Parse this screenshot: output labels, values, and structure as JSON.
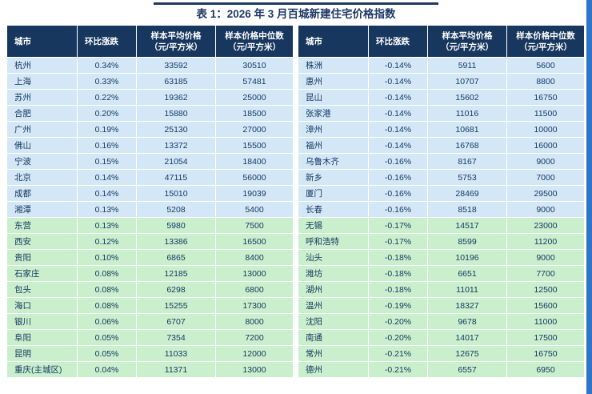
{
  "page": {
    "title": "表 1：2026 年 3 月百城新建住宅价格指数"
  },
  "colors": {
    "header_bg": "#17375e",
    "title_color": "#1f3864",
    "row_blue": "#d3e7f7",
    "row_green": "#c9efcd",
    "accent_strip": "#2e74c9",
    "cell_text": "#173a63"
  },
  "columns": [
    {
      "key": "city",
      "label": "城市",
      "sub": ""
    },
    {
      "key": "change",
      "label": "环比涨跌",
      "sub": ""
    },
    {
      "key": "avg",
      "label": "样本平均价格",
      "sub": "（元/平方米）"
    },
    {
      "key": "median",
      "label": "样本价格中位数",
      "sub": "（元/平方米）"
    }
  ],
  "left_table": {
    "rows": [
      {
        "city": "杭州",
        "change": "0.34%",
        "avg": "33592",
        "median": "30510"
      },
      {
        "city": "上海",
        "change": "0.33%",
        "avg": "63185",
        "median": "57481"
      },
      {
        "city": "苏州",
        "change": "0.22%",
        "avg": "19362",
        "median": "25000"
      },
      {
        "city": "合肥",
        "change": "0.20%",
        "avg": "15880",
        "median": "18500"
      },
      {
        "city": "广州",
        "change": "0.19%",
        "avg": "25130",
        "median": "27000"
      },
      {
        "city": "佛山",
        "change": "0.16%",
        "avg": "13372",
        "median": "15500"
      },
      {
        "city": "宁波",
        "change": "0.15%",
        "avg": "21054",
        "median": "18400"
      },
      {
        "city": "北京",
        "change": "0.14%",
        "avg": "47115",
        "median": "56000"
      },
      {
        "city": "成都",
        "change": "0.14%",
        "avg": "15010",
        "median": "19039"
      },
      {
        "city": "湘潭",
        "change": "0.13%",
        "avg": "5208",
        "median": "5400"
      },
      {
        "city": "东营",
        "change": "0.13%",
        "avg": "5980",
        "median": "7500"
      },
      {
        "city": "西安",
        "change": "0.12%",
        "avg": "13386",
        "median": "16500"
      },
      {
        "city": "贵阳",
        "change": "0.10%",
        "avg": "6865",
        "median": "8400"
      },
      {
        "city": "石家庄",
        "change": "0.08%",
        "avg": "12185",
        "median": "13000"
      },
      {
        "city": "包头",
        "change": "0.08%",
        "avg": "6298",
        "median": "6800"
      },
      {
        "city": "海口",
        "change": "0.08%",
        "avg": "15255",
        "median": "17300"
      },
      {
        "city": "银川",
        "change": "0.06%",
        "avg": "6707",
        "median": "8000"
      },
      {
        "city": "阜阳",
        "change": "0.05%",
        "avg": "7354",
        "median": "7200"
      },
      {
        "city": "昆明",
        "change": "0.05%",
        "avg": "11033",
        "median": "12000"
      },
      {
        "city": "重庆(主城区)",
        "change": "0.04%",
        "avg": "11371",
        "median": "13000"
      }
    ]
  },
  "right_table": {
    "rows": [
      {
        "city": "株洲",
        "change": "-0.14%",
        "avg": "5911",
        "median": "5600"
      },
      {
        "city": "惠州",
        "change": "-0.14%",
        "avg": "10707",
        "median": "8800"
      },
      {
        "city": "昆山",
        "change": "-0.14%",
        "avg": "15602",
        "median": "16750"
      },
      {
        "city": "张家港",
        "change": "-0.14%",
        "avg": "11016",
        "median": "11500"
      },
      {
        "city": "漳州",
        "change": "-0.14%",
        "avg": "10681",
        "median": "10000"
      },
      {
        "city": "福州",
        "change": "-0.14%",
        "avg": "16768",
        "median": "16000"
      },
      {
        "city": "乌鲁木齐",
        "change": "-0.16%",
        "avg": "8167",
        "median": "9000"
      },
      {
        "city": "新乡",
        "change": "-0.16%",
        "avg": "5753",
        "median": "7000"
      },
      {
        "city": "厦门",
        "change": "-0.16%",
        "avg": "28469",
        "median": "29500"
      },
      {
        "city": "长春",
        "change": "-0.16%",
        "avg": "8518",
        "median": "9000"
      },
      {
        "city": "无锡",
        "change": "-0.17%",
        "avg": "14517",
        "median": "23000"
      },
      {
        "city": "呼和浩特",
        "change": "-0.17%",
        "avg": "8599",
        "median": "11200"
      },
      {
        "city": "汕头",
        "change": "-0.18%",
        "avg": "10196",
        "median": "9000"
      },
      {
        "city": "潍坊",
        "change": "-0.18%",
        "avg": "6651",
        "median": "7700"
      },
      {
        "city": "湖州",
        "change": "-0.18%",
        "avg": "11011",
        "median": "12500"
      },
      {
        "city": "温州",
        "change": "-0.19%",
        "avg": "18327",
        "median": "15600"
      },
      {
        "city": "沈阳",
        "change": "-0.20%",
        "avg": "9678",
        "median": "11000"
      },
      {
        "city": "南通",
        "change": "-0.20%",
        "avg": "14017",
        "median": "17500"
      },
      {
        "city": "常州",
        "change": "-0.21%",
        "avg": "12675",
        "median": "16750"
      },
      {
        "city": "德州",
        "change": "-0.21%",
        "avg": "6557",
        "median": "6950"
      }
    ]
  }
}
